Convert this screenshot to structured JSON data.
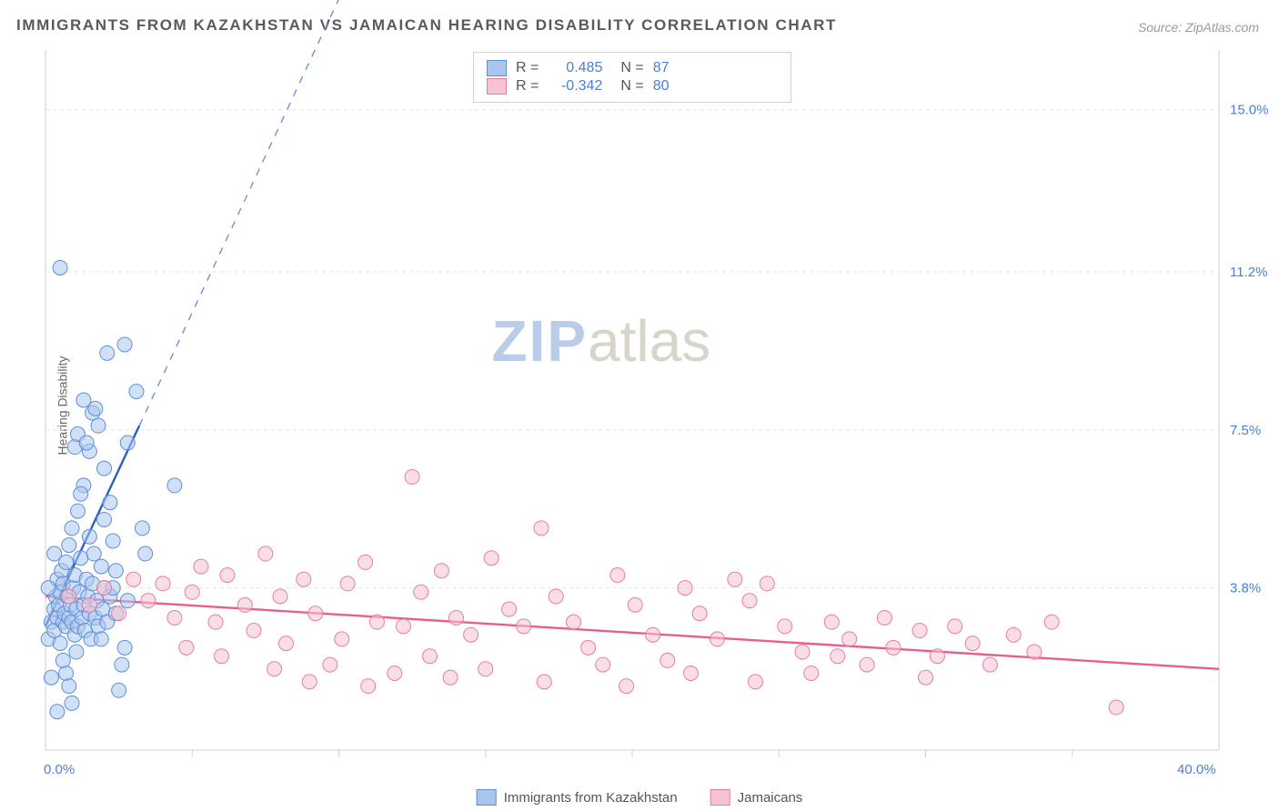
{
  "title": "IMMIGRANTS FROM KAZAKHSTAN VS JAMAICAN HEARING DISABILITY CORRELATION CHART",
  "source": "Source: ZipAtlas.com",
  "ylabel": "Hearing Disability",
  "watermark": {
    "zip": "ZIP",
    "atlas": "atlas"
  },
  "chart": {
    "type": "scatter",
    "background_color": "#ffffff",
    "grid_color": "#e3e3e3",
    "axis_color": "#d0d0d0",
    "label_color": "#4a80d6",
    "xlim": [
      0,
      40
    ],
    "ylim": [
      0,
      16.4
    ],
    "x_ticks": [
      0,
      40
    ],
    "x_tick_labels": [
      "0.0%",
      "40.0%"
    ],
    "x_minor_ticks": [
      5,
      10,
      15,
      20,
      25,
      30,
      35
    ],
    "y_ticks": [
      3.8,
      7.5,
      11.2,
      15.0
    ],
    "y_tick_labels": [
      "3.8%",
      "7.5%",
      "11.2%",
      "15.0%"
    ],
    "marker_radius": 8,
    "marker_opacity": 0.55,
    "legend_bottom": [
      {
        "label": "Immigrants from Kazakhstan",
        "fill": "#a9c6ee",
        "stroke": "#5f8fd6"
      },
      {
        "label": "Jamaicans",
        "fill": "#f6c3d0",
        "stroke": "#e77ea0"
      }
    ],
    "series": [
      {
        "name": "Immigrants from Kazakhstan",
        "color_fill": "#a9c6ee",
        "color_stroke": "#5f8fd6",
        "R": "0.485",
        "N": "87",
        "trend": {
          "x1": 0.0,
          "y1": 2.9,
          "x2": 3.2,
          "y2": 7.6,
          "dash_x2": 11.5,
          "dash_y2": 19.8,
          "color": "#2a5fbd",
          "width": 2.4,
          "dash_color": "#6b93d4"
        },
        "points": [
          [
            0.1,
            2.6
          ],
          [
            0.2,
            3.0
          ],
          [
            0.3,
            3.3
          ],
          [
            0.3,
            2.8
          ],
          [
            0.35,
            3.6
          ],
          [
            0.4,
            3.1
          ],
          [
            0.4,
            4.0
          ],
          [
            0.45,
            3.4
          ],
          [
            0.5,
            3.7
          ],
          [
            0.5,
            2.5
          ],
          [
            0.55,
            4.2
          ],
          [
            0.6,
            3.0
          ],
          [
            0.6,
            3.9
          ],
          [
            0.65,
            3.2
          ],
          [
            0.7,
            4.4
          ],
          [
            0.7,
            2.9
          ],
          [
            0.75,
            3.6
          ],
          [
            0.8,
            3.1
          ],
          [
            0.8,
            4.8
          ],
          [
            0.85,
            3.4
          ],
          [
            0.9,
            5.2
          ],
          [
            0.9,
            3.0
          ],
          [
            0.95,
            3.8
          ],
          [
            1.0,
            2.7
          ],
          [
            1.0,
            4.1
          ],
          [
            1.05,
            3.3
          ],
          [
            1.1,
            5.6
          ],
          [
            1.1,
            2.9
          ],
          [
            1.15,
            3.7
          ],
          [
            1.2,
            4.5
          ],
          [
            1.25,
            3.1
          ],
          [
            1.3,
            6.2
          ],
          [
            1.3,
            3.4
          ],
          [
            1.35,
            2.8
          ],
          [
            1.4,
            4.0
          ],
          [
            1.45,
            3.6
          ],
          [
            1.5,
            5.0
          ],
          [
            1.5,
            3.2
          ],
          [
            1.55,
            2.6
          ],
          [
            1.6,
            3.9
          ],
          [
            1.65,
            4.6
          ],
          [
            1.7,
            3.1
          ],
          [
            1.75,
            3.5
          ],
          [
            1.8,
            2.9
          ],
          [
            1.9,
            4.3
          ],
          [
            1.95,
            3.3
          ],
          [
            2.0,
            3.8
          ],
          [
            2.0,
            5.4
          ],
          [
            2.1,
            3.0
          ],
          [
            2.2,
            3.6
          ],
          [
            2.3,
            4.9
          ],
          [
            2.4,
            3.2
          ],
          [
            2.5,
            1.4
          ],
          [
            2.6,
            2.0
          ],
          [
            2.7,
            2.4
          ],
          [
            2.8,
            3.5
          ],
          [
            1.0,
            7.1
          ],
          [
            1.1,
            7.4
          ],
          [
            1.5,
            7.0
          ],
          [
            1.6,
            7.9
          ],
          [
            1.7,
            8.0
          ],
          [
            1.8,
            7.6
          ],
          [
            0.7,
            1.8
          ],
          [
            0.8,
            1.5
          ],
          [
            0.9,
            1.1
          ],
          [
            1.4,
            7.2
          ],
          [
            1.3,
            8.2
          ],
          [
            1.2,
            6.0
          ],
          [
            2.2,
            5.8
          ],
          [
            2.4,
            4.2
          ],
          [
            3.3,
            5.2
          ],
          [
            3.4,
            4.6
          ],
          [
            0.5,
            11.3
          ],
          [
            2.1,
            9.3
          ],
          [
            2.7,
            9.5
          ],
          [
            3.1,
            8.4
          ],
          [
            4.4,
            6.2
          ],
          [
            0.4,
            0.9
          ],
          [
            0.6,
            2.1
          ],
          [
            1.9,
            2.6
          ],
          [
            2.0,
            6.6
          ],
          [
            2.8,
            7.2
          ],
          [
            2.3,
            3.8
          ],
          [
            0.3,
            4.6
          ],
          [
            0.2,
            1.7
          ],
          [
            0.1,
            3.8
          ],
          [
            1.05,
            2.3
          ]
        ]
      },
      {
        "name": "Jamaicans",
        "color_fill": "#f6c3d0",
        "color_stroke": "#e77ea0",
        "R": "-0.342",
        "N": "80",
        "trend": {
          "x1": 0.0,
          "y1": 3.6,
          "x2": 40.0,
          "y2": 1.9,
          "color": "#e85f8f",
          "width": 2.4
        },
        "points": [
          [
            0.8,
            3.6
          ],
          [
            1.5,
            3.4
          ],
          [
            2.0,
            3.8
          ],
          [
            2.5,
            3.2
          ],
          [
            3.0,
            4.0
          ],
          [
            3.5,
            3.5
          ],
          [
            4.0,
            3.9
          ],
          [
            4.4,
            3.1
          ],
          [
            5.0,
            3.7
          ],
          [
            5.3,
            4.3
          ],
          [
            5.8,
            3.0
          ],
          [
            6.2,
            4.1
          ],
          [
            6.8,
            3.4
          ],
          [
            7.1,
            2.8
          ],
          [
            7.5,
            4.6
          ],
          [
            8.0,
            3.6
          ],
          [
            8.2,
            2.5
          ],
          [
            8.8,
            4.0
          ],
          [
            9.2,
            3.2
          ],
          [
            9.7,
            2.0
          ],
          [
            10.1,
            2.6
          ],
          [
            10.3,
            3.9
          ],
          [
            10.9,
            4.4
          ],
          [
            11.3,
            3.0
          ],
          [
            11.9,
            1.8
          ],
          [
            12.2,
            2.9
          ],
          [
            12.8,
            3.7
          ],
          [
            13.1,
            2.2
          ],
          [
            13.5,
            4.2
          ],
          [
            14.0,
            3.1
          ],
          [
            14.5,
            2.7
          ],
          [
            9.0,
            1.6
          ],
          [
            12.5,
            6.4
          ],
          [
            15.2,
            4.5
          ],
          [
            15.8,
            3.3
          ],
          [
            16.3,
            2.9
          ],
          [
            16.9,
            5.2
          ],
          [
            17.4,
            3.6
          ],
          [
            18.0,
            3.0
          ],
          [
            18.5,
            2.4
          ],
          [
            19.0,
            2.0
          ],
          [
            19.5,
            4.1
          ],
          [
            20.1,
            3.4
          ],
          [
            20.7,
            2.7
          ],
          [
            21.2,
            2.1
          ],
          [
            21.8,
            3.8
          ],
          [
            22.3,
            3.2
          ],
          [
            22.9,
            2.6
          ],
          [
            23.5,
            4.0
          ],
          [
            24.0,
            3.5
          ],
          [
            24.6,
            3.9
          ],
          [
            25.2,
            2.9
          ],
          [
            25.8,
            2.3
          ],
          [
            26.1,
            1.8
          ],
          [
            26.8,
            3.0
          ],
          [
            27.4,
            2.6
          ],
          [
            28.0,
            2.0
          ],
          [
            28.6,
            3.1
          ],
          [
            28.9,
            2.4
          ],
          [
            29.8,
            2.8
          ],
          [
            30.4,
            2.2
          ],
          [
            31.0,
            2.9
          ],
          [
            31.6,
            2.5
          ],
          [
            32.2,
            2.0
          ],
          [
            33.0,
            2.7
          ],
          [
            33.7,
            2.3
          ],
          [
            34.3,
            3.0
          ],
          [
            36.5,
            1.0
          ],
          [
            6.0,
            2.2
          ],
          [
            7.8,
            1.9
          ],
          [
            11.0,
            1.5
          ],
          [
            13.8,
            1.7
          ],
          [
            15.0,
            1.9
          ],
          [
            17.0,
            1.6
          ],
          [
            19.8,
            1.5
          ],
          [
            22.0,
            1.8
          ],
          [
            24.2,
            1.6
          ],
          [
            27.0,
            2.2
          ],
          [
            30.0,
            1.7
          ],
          [
            4.8,
            2.4
          ]
        ]
      }
    ]
  }
}
